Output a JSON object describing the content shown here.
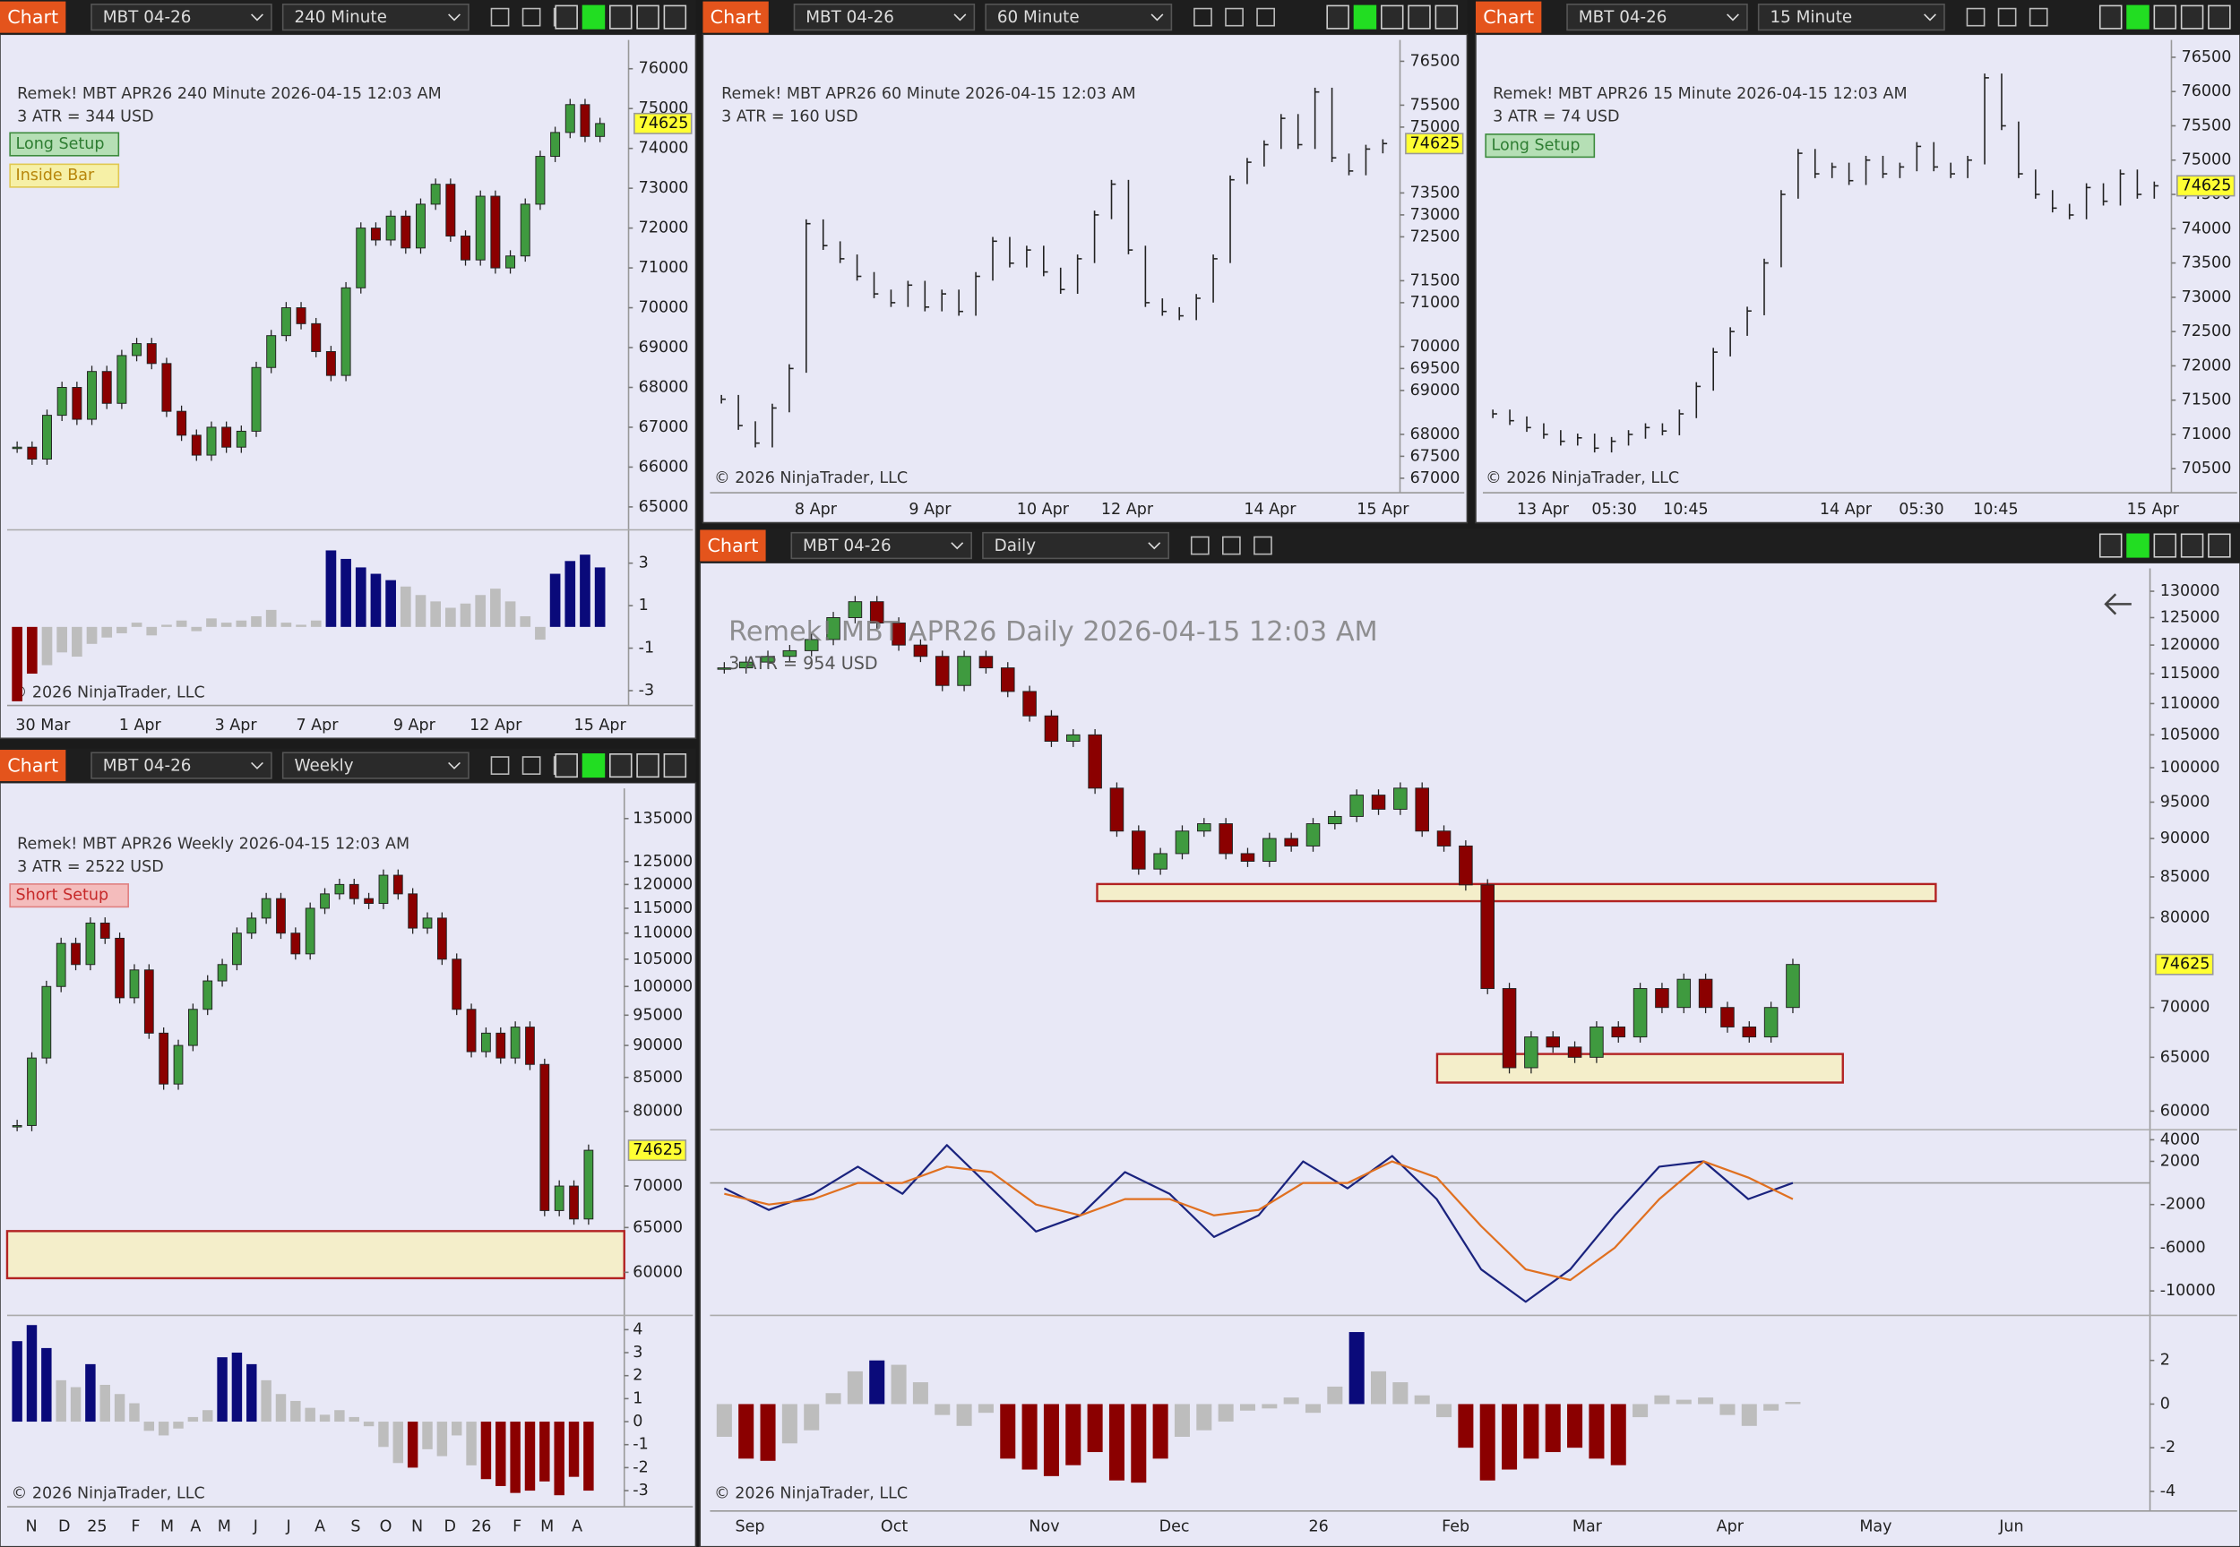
{
  "chart_data": [
    {
      "type": "candlestick",
      "toolbar": {
        "label": "Chart",
        "instrument": "MBT 04-26",
        "interval": "240 Minute"
      },
      "info": "Remek!  MBT APR26  240 Minute  2026-04-15 12:03 AM",
      "atr": "3 ATR = 344 USD",
      "tags": [
        "Long Setup",
        "Inside Bar"
      ],
      "copyright": "© 2026 NinjaTrader, LLC",
      "ylim": [
        64460,
        76650
      ],
      "yticks": [
        76000,
        75000,
        74000,
        73000,
        72000,
        71000,
        70000,
        69000,
        68000,
        67000,
        66000,
        65000
      ],
      "last_price": 74625,
      "xticks": [
        "30 Mar",
        "1 Apr",
        "3 Apr",
        "7 Apr",
        "9 Apr",
        "12 Apr",
        "15 Apr"
      ],
      "values": [
        66500,
        66200,
        67300,
        68000,
        67200,
        68400,
        67600,
        68800,
        69100,
        68600,
        67400,
        66800,
        66300,
        67000,
        66500,
        66900,
        68500,
        69300,
        70000,
        69600,
        68900,
        68300,
        70500,
        72000,
        71700,
        72300,
        71500,
        72600,
        73100,
        71800,
        71200,
        72800,
        71000,
        71300,
        72600,
        73800,
        74400,
        75100,
        74300,
        74625
      ],
      "indicator": {
        "ylim": [
          -3.7,
          4.5
        ],
        "yticks": [
          3,
          1,
          -1,
          -3
        ],
        "values": [
          -3.5,
          -2.2,
          -1.8,
          -1.2,
          -1.4,
          -0.8,
          -0.5,
          -0.3,
          0.2,
          -0.4,
          0.1,
          0.3,
          -0.2,
          0.4,
          0.2,
          0.3,
          0.5,
          0.8,
          0.2,
          0.1,
          0.3,
          3.6,
          3.2,
          2.8,
          2.5,
          2.2,
          1.9,
          1.5,
          1.2,
          0.9,
          1.1,
          1.5,
          1.8,
          1.2,
          0.5,
          -0.6,
          2.5,
          3.1,
          3.4,
          2.8
        ]
      }
    },
    {
      "type": "ohlc",
      "toolbar": {
        "label": "Chart",
        "instrument": "MBT 04-26",
        "interval": "60 Minute"
      },
      "info": "Remek!  MBT APR26  60 Minute  2026-04-15 12:03 AM",
      "atr": "3 ATR = 160 USD",
      "tags": [],
      "copyright": "© 2026 NinjaTrader, LLC",
      "ylim": [
        66670,
        76920
      ],
      "yticks": [
        76500,
        75500,
        75000,
        73500,
        73000,
        72500,
        71500,
        71000,
        70000,
        69500,
        69000,
        68000,
        67500,
        67000
      ],
      "last_price": 74625,
      "xticks": [
        "8 Apr",
        "9 Apr",
        "10 Apr",
        "12 Apr",
        "14 Apr",
        "15 Apr"
      ],
      "values": [
        68800,
        68200,
        67800,
        68600,
        69500,
        72800,
        72300,
        72000,
        71600,
        71200,
        71000,
        71400,
        70900,
        71200,
        70800,
        71600,
        72400,
        71900,
        72200,
        71700,
        71300,
        72000,
        73000,
        73700,
        72200,
        71000,
        70800,
        70700,
        71100,
        72000,
        73800,
        74200,
        74600,
        75200,
        74600,
        75800,
        74300,
        74000,
        74500,
        74625
      ]
    },
    {
      "type": "ohlc",
      "toolbar": {
        "label": "Chart",
        "instrument": "MBT 04-26",
        "interval": "15 Minute"
      },
      "info": "Remek!  MBT APR26  15 Minute  2026-04-15 12:03 AM",
      "atr": "3 ATR = 74 USD",
      "tags": [
        "Long Setup"
      ],
      "copyright": "© 2026 NinjaTrader, LLC",
      "ylim": [
        70150,
        76710
      ],
      "yticks": [
        76500,
        76000,
        75500,
        75000,
        74500,
        74000,
        73500,
        73000,
        72500,
        72000,
        71500,
        71000,
        70500
      ],
      "last_price": 74625,
      "xticks": [
        "13 Apr",
        "05:30",
        "10:45",
        "14 Apr",
        "05:30",
        "10:45",
        "15 Apr"
      ],
      "values": [
        71300,
        71200,
        71100,
        71000,
        70900,
        70950,
        70800,
        70900,
        71000,
        71100,
        71050,
        71300,
        71700,
        72200,
        72500,
        72800,
        73500,
        74500,
        75100,
        74800,
        74900,
        74700,
        75000,
        74800,
        74900,
        75200,
        74900,
        74800,
        75000,
        76200,
        75500,
        74800,
        74500,
        74300,
        74200,
        74600,
        74400,
        74800,
        74500,
        74625
      ]
    },
    {
      "type": "candlestick",
      "toolbar": {
        "label": "Chart",
        "instrument": "MBT 04-26",
        "interval": "Weekly"
      },
      "info": "Remek!  MBT APR26  Weekly  2026-04-15 12:03 AM",
      "atr": "3 ATR = 2522 USD",
      "tags": [
        "Short Setup"
      ],
      "copyright": "© 2026 NinjaTrader, LLC",
      "log": true,
      "ylim": [
        55700,
        141400
      ],
      "yticks": [
        135000,
        125000,
        120000,
        115000,
        110000,
        105000,
        100000,
        95000,
        90000,
        85000,
        80000,
        70000,
        65000,
        60000
      ],
      "last_price": 74625,
      "xticks": [
        "N",
        "D",
        "25",
        "F",
        "M",
        "A",
        "M",
        "J",
        "J",
        "A",
        "S",
        "O",
        "N",
        "D",
        "26",
        "F",
        "M",
        "A"
      ],
      "values": [
        78000,
        88000,
        100000,
        108000,
        104000,
        112000,
        109000,
        98000,
        103000,
        92000,
        84000,
        90000,
        96000,
        101000,
        104000,
        110000,
        113000,
        117000,
        110000,
        106000,
        115000,
        118000,
        120000,
        117000,
        116000,
        122000,
        118000,
        111000,
        113000,
        105000,
        96000,
        89000,
        92000,
        88000,
        93000,
        87000,
        67000,
        70000,
        66000,
        74625
      ],
      "indicator": {
        "ylim": [
          -3.7,
          4.56
        ],
        "yticks": [
          4,
          3,
          2,
          1,
          0,
          -1,
          -2,
          -3
        ],
        "values": [
          3.5,
          4.2,
          3.2,
          1.8,
          1.5,
          2.5,
          1.6,
          1.2,
          0.8,
          -0.4,
          -0.6,
          -0.3,
          0.2,
          0.5,
          2.8,
          3.0,
          2.5,
          1.8,
          1.2,
          0.9,
          0.6,
          0.3,
          0.5,
          0.2,
          -0.2,
          -1.1,
          -1.8,
          -2.0,
          -1.2,
          -1.5,
          -0.6,
          -1.9,
          -2.5,
          -2.8,
          -3.1,
          -3.0,
          -2.6,
          -3.2,
          -2.4,
          -3.0
        ]
      }
    },
    {
      "type": "candlestick",
      "toolbar": {
        "label": "Chart",
        "instrument": "MBT 04-26",
        "interval": "Daily"
      },
      "info": "Remek!  MBT APR26  Daily  2026-04-15 12:03 AM",
      "atr": "3 ATR = 954 USD",
      "tags": [],
      "copyright": "© 2026 NinjaTrader, LLC",
      "log": true,
      "ylim": [
        58490,
        133070
      ],
      "yticks": [
        130000,
        125000,
        120000,
        115000,
        110000,
        105000,
        100000,
        95000,
        90000,
        85000,
        80000,
        70000,
        65000,
        60000
      ],
      "last_price": 74625,
      "xticks": [
        "Sep",
        "Oct",
        "Nov",
        "Dec",
        "26",
        "Feb",
        "Mar",
        "Apr",
        "May",
        "Jun"
      ],
      "values": [
        116000,
        117000,
        118000,
        119000,
        121000,
        125000,
        128000,
        124000,
        120000,
        118000,
        113000,
        118000,
        116000,
        112000,
        108000,
        104000,
        105000,
        97000,
        91000,
        86000,
        88000,
        91000,
        92000,
        88000,
        87000,
        90000,
        89000,
        92000,
        93000,
        96000,
        94000,
        97000,
        91000,
        89000,
        84000,
        72000,
        64000,
        67000,
        66000,
        65000,
        68000,
        67000,
        72000,
        70000,
        73000,
        70000,
        68000,
        67000,
        70000,
        74625
      ],
      "oscillator": {
        "ylim": [
          -12130,
          4800
        ],
        "yticks": [
          4000,
          2000,
          -2000,
          -6000,
          -10000
        ],
        "series": [
          {
            "color": "#1a237e",
            "values": [
              -500,
              -2500,
              -1000,
              1500,
              -1000,
              3500,
              -500,
              -4500,
              -3000,
              1000,
              -1000,
              -5000,
              -3000,
              2000,
              -500,
              2500,
              -1500,
              -8000,
              -11000,
              -8000,
              -3000,
              1500,
              2000,
              -1500,
              0
            ]
          },
          {
            "color": "#e07020",
            "values": [
              -1000,
              -2000,
              -1500,
              0,
              0,
              1500,
              1000,
              -2000,
              -3000,
              -1500,
              -1500,
              -3000,
              -2500,
              0,
              0,
              2000,
              500,
              -4000,
              -8000,
              -9000,
              -6000,
              -1500,
              2000,
              500,
              -1500
            ]
          }
        ]
      },
      "indicator": {
        "ylim": [
          -4.9,
          4
        ],
        "yticks": [
          2,
          0,
          -2,
          -4
        ],
        "values": [
          -1.5,
          -2.5,
          -2.6,
          -1.8,
          -1.2,
          0.5,
          1.5,
          2.0,
          1.8,
          1.0,
          -0.5,
          -1.0,
          -0.4,
          -2.5,
          -3.0,
          -3.3,
          -2.8,
          -2.2,
          -3.5,
          -3.6,
          -2.5,
          -1.5,
          -1.2,
          -0.8,
          -0.3,
          -0.2,
          0.3,
          -0.4,
          0.8,
          3.3,
          1.5,
          1.0,
          0.4,
          -0.6,
          -2.0,
          -3.5,
          -3.0,
          -2.5,
          -2.2,
          -2.0,
          -2.5,
          -2.8,
          -0.6,
          0.4,
          0.2,
          0.3,
          -0.5,
          -1.0,
          -0.3,
          0.1
        ]
      }
    }
  ]
}
